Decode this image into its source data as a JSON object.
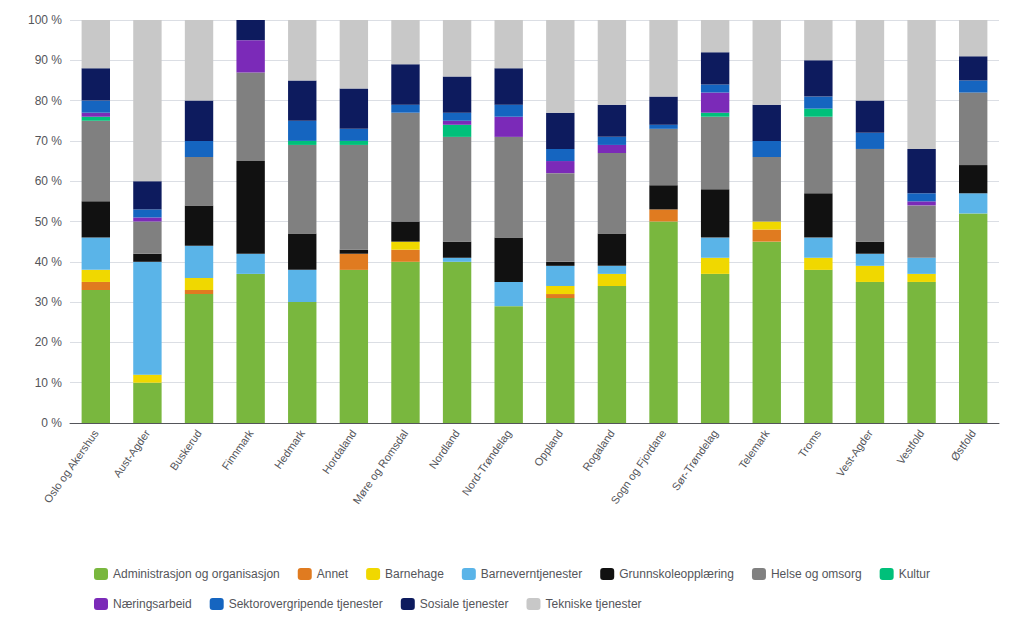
{
  "chart_data": {
    "type": "bar",
    "stacked": true,
    "grid": true,
    "legend": "bottom",
    "categories": [
      "Oslo og Akershus",
      "Aust-Agder",
      "Buskerud",
      "Finnmark",
      "Hedmark",
      "Hordaland",
      "Møre og Romsdal",
      "Nordland",
      "Nord-Trøndelag",
      "Oppland",
      "Rogaland",
      "Sogn og Fjordane",
      "Sør-Trøndelag",
      "Telemark",
      "Troms",
      "Vest-Agder",
      "Vestfold",
      "Østfold"
    ],
    "series": [
      {
        "name": "Administrasjon og organisasjon",
        "color": "#79b73e",
        "values": [
          33,
          10,
          32,
          37,
          30,
          38,
          40,
          40,
          29,
          31,
          34,
          50,
          37,
          45,
          38,
          35,
          35,
          52
        ]
      },
      {
        "name": "Annet",
        "color": "#e07b20",
        "values": [
          2,
          0,
          1,
          0,
          0,
          4,
          3,
          0,
          0,
          1,
          0,
          3,
          0,
          3,
          0,
          0,
          0,
          0
        ]
      },
      {
        "name": "Barnehage",
        "color": "#f0d800",
        "values": [
          3,
          2,
          3,
          0,
          0,
          0,
          2,
          0,
          0,
          2,
          3,
          0,
          4,
          2,
          3,
          4,
          2,
          0
        ]
      },
      {
        "name": "Barneverntjenester",
        "color": "#5ab4e8",
        "values": [
          8,
          28,
          8,
          5,
          8,
          0,
          0,
          1,
          6,
          5,
          2,
          0,
          5,
          0,
          5,
          3,
          4,
          5
        ]
      },
      {
        "name": "Grunnskoleopplæring",
        "color": "#111111",
        "values": [
          9,
          2,
          10,
          23,
          9,
          1,
          5,
          4,
          11,
          1,
          8,
          6,
          12,
          0,
          11,
          3,
          0,
          7
        ]
      },
      {
        "name": "Helse og omsorg",
        "color": "#808080",
        "values": [
          20,
          8,
          12,
          22,
          22,
          26,
          27,
          26,
          25,
          22,
          20,
          14,
          18,
          16,
          19,
          23,
          13,
          18
        ]
      },
      {
        "name": "Kultur",
        "color": "#00c07a",
        "values": [
          1,
          0,
          0,
          0,
          1,
          1,
          0,
          3,
          0,
          0,
          0,
          0,
          1,
          0,
          2,
          0,
          0,
          0
        ]
      },
      {
        "name": "Næringsarbeid",
        "color": "#7b2ab8",
        "values": [
          1,
          1,
          0,
          8,
          0,
          0,
          0,
          1,
          5,
          3,
          2,
          0,
          5,
          0,
          0,
          0,
          1,
          0
        ]
      },
      {
        "name": "Sektorovergripende tjenester",
        "color": "#1565c0",
        "values": [
          3,
          2,
          4,
          0,
          5,
          3,
          2,
          2,
          3,
          3,
          2,
          1,
          2,
          4,
          3,
          4,
          2,
          3
        ]
      },
      {
        "name": "Sosiale tjenester",
        "color": "#0d1b5e",
        "values": [
          8,
          7,
          10,
          5,
          10,
          10,
          10,
          9,
          9,
          9,
          8,
          7,
          8,
          9,
          9,
          8,
          11,
          6
        ]
      },
      {
        "name": "Tekniske tjenester",
        "color": "#c8c8c8",
        "values": [
          12,
          40,
          20,
          0,
          15,
          17,
          11,
          14,
          12,
          23,
          21,
          19,
          8,
          21,
          10,
          20,
          32,
          9
        ]
      }
    ],
    "ylim": [
      0,
      100
    ],
    "yticks": [
      {
        "value": 0,
        "label": "0 %"
      },
      {
        "value": 10,
        "label": "10 %"
      },
      {
        "value": 20,
        "label": "20 %"
      },
      {
        "value": 30,
        "label": "30 %"
      },
      {
        "value": 40,
        "label": "40 %"
      },
      {
        "value": 50,
        "label": "50 %"
      },
      {
        "value": 60,
        "label": "60 %"
      },
      {
        "value": 70,
        "label": "70 %"
      },
      {
        "value": 80,
        "label": "80 %"
      },
      {
        "value": 90,
        "label": "90 %"
      },
      {
        "value": 100,
        "label": "100 %"
      }
    ]
  }
}
